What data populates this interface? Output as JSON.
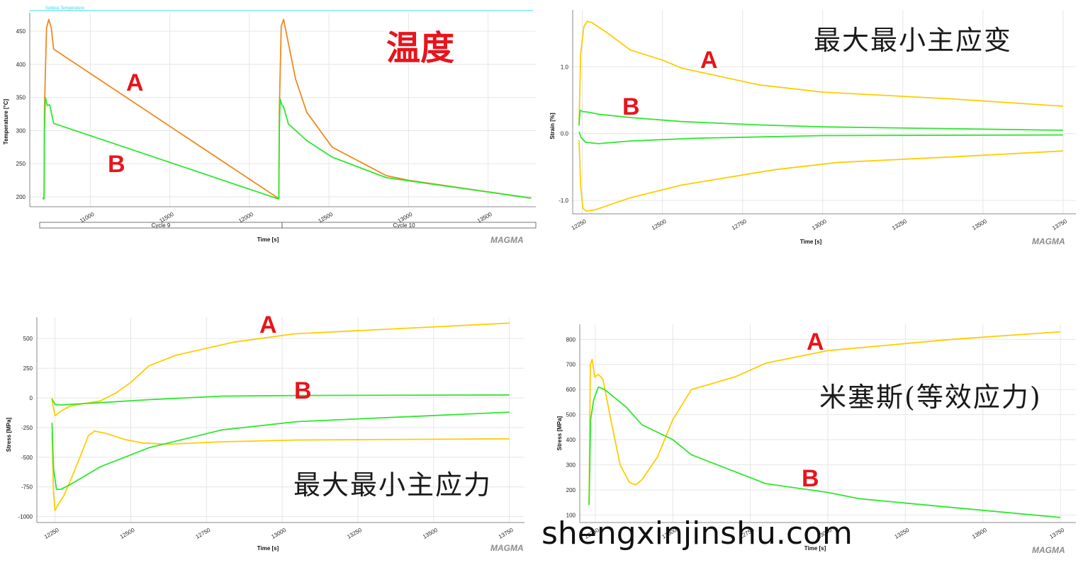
{
  "colors": {
    "orange": "#f08a1e",
    "yellow": "#ffcc00",
    "green": "#2ee82e",
    "red": "#e8141c",
    "solidus": "#30d8e8"
  },
  "logo": "MAGMA",
  "watermark": "shengxinjinshu.com",
  "chart_data": [
    {
      "type": "line",
      "title": "温度",
      "xlabel": "Time [s]",
      "ylabel": "Temperature [°C]",
      "xlim": [
        10620,
        13800
      ],
      "ylim": [
        185,
        478
      ],
      "xticks": [
        "11000",
        "11500",
        "12000",
        "12500",
        "13000",
        "13500"
      ],
      "yticks": [
        "200",
        "250",
        "300",
        "350",
        "400",
        "450"
      ],
      "reference_line": {
        "label": "Solidus Temperature",
        "y": 476
      },
      "cycles": [
        {
          "label": "Cycle 9",
          "start": 10620,
          "end": 12180
        },
        {
          "label": "Cycle 10",
          "start": 12180,
          "end": 13800
        }
      ],
      "series": [
        {
          "name": "A",
          "color": "orange",
          "points": [
            [
              10700,
              198
            ],
            [
              10710,
              198
            ],
            [
              10712,
              330
            ],
            [
              10725,
              455
            ],
            [
              10740,
              468
            ],
            [
              10755,
              455
            ],
            [
              10770,
              423
            ],
            [
              12180,
              198
            ],
            [
              12185,
              198
            ],
            [
              12188,
              330
            ],
            [
              12200,
              458
            ],
            [
              12215,
              468
            ],
            [
              12230,
              450
            ],
            [
              12290,
              378
            ],
            [
              12360,
              328
            ],
            [
              12520,
              275
            ],
            [
              12860,
              232
            ],
            [
              13000,
              225
            ],
            [
              13770,
              198
            ]
          ]
        },
        {
          "name": "B",
          "color": "green",
          "points": [
            [
              10700,
              197
            ],
            [
              10710,
              197
            ],
            [
              10712,
              300
            ],
            [
              10718,
              350
            ],
            [
              10730,
              338
            ],
            [
              10745,
              339
            ],
            [
              10770,
              311
            ],
            [
              12180,
              197
            ],
            [
              12185,
              197
            ],
            [
              12188,
              300
            ],
            [
              12193,
              348
            ],
            [
              12205,
              338
            ],
            [
              12215,
              336
            ],
            [
              12245,
              310
            ],
            [
              12360,
              285
            ],
            [
              12520,
              260
            ],
            [
              12860,
              229
            ],
            [
              13770,
              198
            ]
          ]
        }
      ]
    },
    {
      "type": "line",
      "title": "最大最小主应变",
      "xlabel": "Time [s]",
      "ylabel": "Strain [%]",
      "xlim": [
        12220,
        13790
      ],
      "ylim": [
        -1.2,
        1.85
      ],
      "xticks": [
        "12250",
        "12500",
        "12750",
        "13000",
        "13250",
        "13500",
        "13750"
      ],
      "yticks": [
        "1.0",
        "0.0",
        "-1.0"
      ],
      "series": [
        {
          "name": "A",
          "color": "yellow",
          "points": [
            [
              12240,
              0.15
            ],
            [
              12245,
              1.2
            ],
            [
              12255,
              1.6
            ],
            [
              12265,
              1.68
            ],
            [
              12280,
              1.66
            ],
            [
              12330,
              1.5
            ],
            [
              12400,
              1.25
            ],
            [
              12500,
              1.1
            ],
            [
              12560,
              0.98
            ],
            [
              12800,
              0.73
            ],
            [
              13000,
              0.62
            ],
            [
              13400,
              0.52
            ],
            [
              13750,
              0.41
            ]
          ]
        },
        {
          "name": "A",
          "color": "yellow",
          "points": [
            [
              12240,
              -0.1
            ],
            [
              12245,
              -0.8
            ],
            [
              12252,
              -1.12
            ],
            [
              12262,
              -1.16
            ],
            [
              12290,
              -1.14
            ],
            [
              12400,
              -0.96
            ],
            [
              12560,
              -0.77
            ],
            [
              12850,
              -0.54
            ],
            [
              13050,
              -0.43
            ],
            [
              13400,
              -0.35
            ],
            [
              13750,
              -0.26
            ]
          ]
        },
        {
          "name": "B",
          "color": "green",
          "points": [
            [
              12240,
              0.12
            ],
            [
              12243,
              0.35
            ],
            [
              12250,
              0.33
            ],
            [
              12270,
              0.32
            ],
            [
              12300,
              0.29
            ],
            [
              12400,
              0.24
            ],
            [
              12560,
              0.18
            ],
            [
              12800,
              0.13
            ],
            [
              13000,
              0.1
            ],
            [
              13750,
              0.05
            ]
          ]
        },
        {
          "name": "B",
          "color": "green",
          "points": [
            [
              12240,
              0.03
            ],
            [
              12245,
              -0.05
            ],
            [
              12260,
              -0.13
            ],
            [
              12300,
              -0.15
            ],
            [
              12400,
              -0.11
            ],
            [
              12600,
              -0.07
            ],
            [
              13000,
              -0.03
            ],
            [
              13750,
              -0.02
            ]
          ]
        }
      ]
    },
    {
      "type": "line",
      "title": "最大最小主应力",
      "xlabel": "Time [s]",
      "ylabel": "Stress [MPa]",
      "xlim": [
        12190,
        13800
      ],
      "ylim": [
        -1050,
        680
      ],
      "xticks": [
        "12250",
        "12500",
        "12750",
        "13000",
        "13250",
        "13500",
        "13750"
      ],
      "yticks": [
        "500",
        "250",
        "0",
        "-250",
        "-500",
        "-750",
        "-1000"
      ],
      "series": [
        {
          "name": "A",
          "color": "yellow",
          "points": [
            [
              12240,
              0
            ],
            [
              12243,
              -60
            ],
            [
              12250,
              -150
            ],
            [
              12270,
              -110
            ],
            [
              12300,
              -70
            ],
            [
              12340,
              -50
            ],
            [
              12400,
              -25
            ],
            [
              12450,
              40
            ],
            [
              12500,
              130
            ],
            [
              12560,
              270
            ],
            [
              12650,
              360
            ],
            [
              12840,
              470
            ],
            [
              13040,
              540
            ],
            [
              13750,
              630
            ]
          ]
        },
        {
          "name": "A",
          "color": "yellow",
          "points": [
            [
              12240,
              -290
            ],
            [
              12245,
              -800
            ],
            [
              12250,
              -950
            ],
            [
              12260,
              -900
            ],
            [
              12280,
              -820
            ],
            [
              12310,
              -640
            ],
            [
              12340,
              -450
            ],
            [
              12360,
              -320
            ],
            [
              12380,
              -280
            ],
            [
              12420,
              -300
            ],
            [
              12480,
              -350
            ],
            [
              12540,
              -380
            ],
            [
              12620,
              -390
            ],
            [
              12800,
              -370
            ],
            [
              13050,
              -355
            ],
            [
              13750,
              -345
            ]
          ]
        },
        {
          "name": "B",
          "color": "green",
          "points": [
            [
              12240,
              -10
            ],
            [
              12250,
              -55
            ],
            [
              12270,
              -60
            ],
            [
              12300,
              -55
            ],
            [
              12400,
              -40
            ],
            [
              12560,
              -15
            ],
            [
              12800,
              15
            ],
            [
              13050,
              20
            ],
            [
              13750,
              25
            ]
          ]
        },
        {
          "name": "B",
          "color": "green",
          "points": [
            [
              12240,
              -210
            ],
            [
              12245,
              -600
            ],
            [
              12255,
              -770
            ],
            [
              12270,
              -770
            ],
            [
              12300,
              -730
            ],
            [
              12400,
              -580
            ],
            [
              12560,
              -420
            ],
            [
              12800,
              -270
            ],
            [
              13050,
              -200
            ],
            [
              13400,
              -160
            ],
            [
              13750,
              -120
            ]
          ]
        }
      ]
    },
    {
      "type": "line",
      "title": "米塞斯(等效应力)",
      "xlabel": "Time [s]",
      "ylabel": "Stress [MPa]",
      "xlim": [
        12200,
        13800
      ],
      "ylim": [
        70,
        860
      ],
      "xticks": [
        "12250",
        "12500",
        "12750",
        "13000",
        "13250",
        "13500",
        "13750"
      ],
      "yticks": [
        "800",
        "700",
        "600",
        "500",
        "400",
        "300",
        "200",
        "100"
      ],
      "series": [
        {
          "name": "A",
          "color": "yellow",
          "points": [
            [
              12230,
              140
            ],
            [
              12234,
              700
            ],
            [
              12240,
              720
            ],
            [
              12248,
              650
            ],
            [
              12260,
              660
            ],
            [
              12275,
              640
            ],
            [
              12300,
              480
            ],
            [
              12330,
              300
            ],
            [
              12360,
              230
            ],
            [
              12380,
              220
            ],
            [
              12400,
              240
            ],
            [
              12450,
              330
            ],
            [
              12500,
              480
            ],
            [
              12560,
              600
            ],
            [
              12700,
              650
            ],
            [
              12800,
              705
            ],
            [
              13000,
              755
            ],
            [
              13400,
              800
            ],
            [
              13750,
              830
            ]
          ]
        },
        {
          "name": "B",
          "color": "green",
          "points": [
            [
              12230,
              140
            ],
            [
              12235,
              480
            ],
            [
              12245,
              560
            ],
            [
              12260,
              610
            ],
            [
              12280,
              600
            ],
            [
              12310,
              570
            ],
            [
              12350,
              530
            ],
            [
              12400,
              460
            ],
            [
              12500,
              400
            ],
            [
              12560,
              340
            ],
            [
              12800,
              225
            ],
            [
              13000,
              190
            ],
            [
              13100,
              165
            ],
            [
              13400,
              130
            ],
            [
              13750,
              90
            ]
          ]
        }
      ]
    }
  ]
}
